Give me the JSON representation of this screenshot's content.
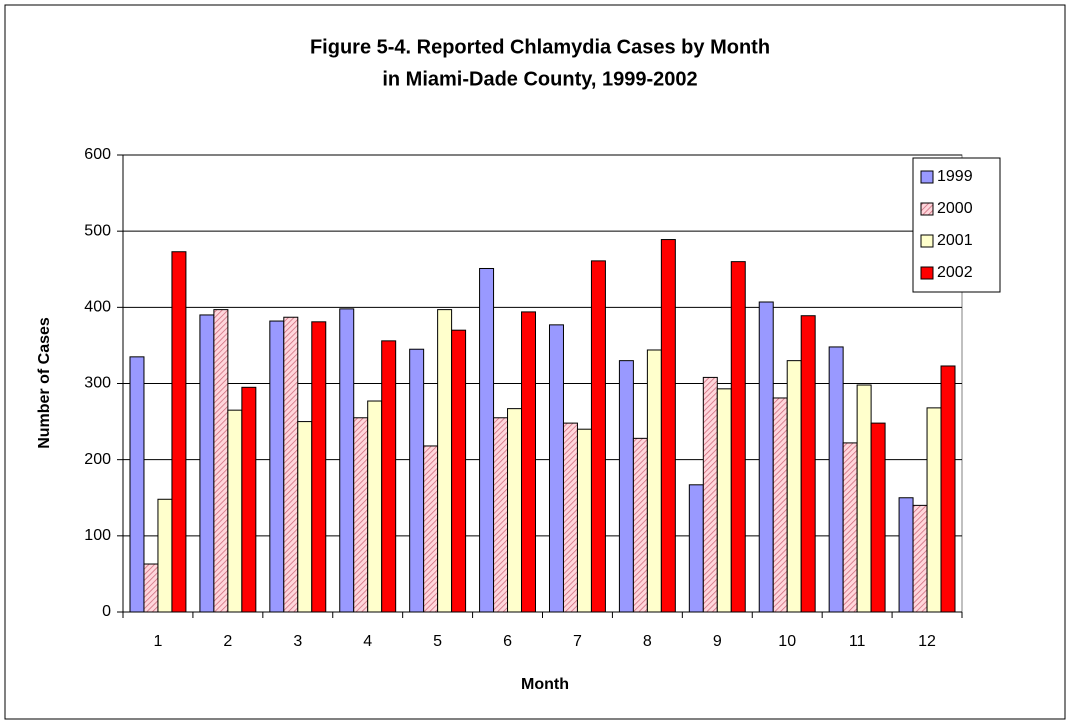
{
  "chart_data": {
    "type": "bar",
    "title": [
      "Figure 5-4.  Reported Chlamydia Cases by Month",
      "in Miami-Dade County, 1999-2002"
    ],
    "x_label": "Month",
    "y_label": "Number of Cases",
    "categories": [
      "1",
      "2",
      "3",
      "4",
      "5",
      "6",
      "7",
      "8",
      "9",
      "10",
      "11",
      "12"
    ],
    "series": [
      {
        "name": "1999",
        "color": "#9999ff",
        "values": [
          335,
          390,
          382,
          398,
          345,
          451,
          377,
          330,
          167,
          407,
          348,
          150
        ]
      },
      {
        "name": "2000",
        "color": "#ff99aa",
        "pattern": "hatch",
        "values": [
          63,
          397,
          387,
          255,
          218,
          255,
          248,
          228,
          308,
          281,
          222,
          140
        ]
      },
      {
        "name": "2001",
        "color": "#ffffcc",
        "values": [
          148,
          265,
          250,
          277,
          397,
          267,
          240,
          344,
          293,
          330,
          298,
          268
        ]
      },
      {
        "name": "2002",
        "color": "#ff0000",
        "values": [
          473,
          295,
          381,
          356,
          370,
          394,
          461,
          489,
          460,
          389,
          248,
          323
        ]
      }
    ],
    "ylim": [
      0,
      600
    ],
    "yticks": [
      0,
      100,
      200,
      300,
      400,
      500,
      600
    ],
    "grid": true,
    "legend": "upper right"
  }
}
